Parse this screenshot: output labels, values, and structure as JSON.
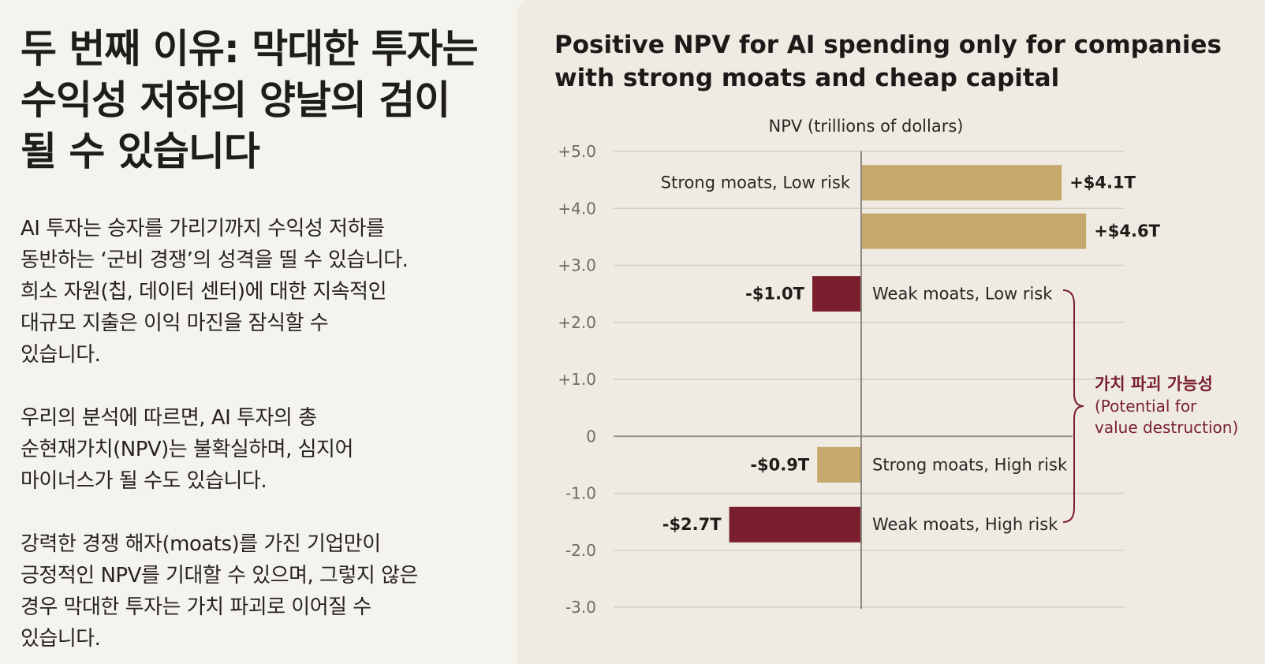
{
  "left": {
    "headline": [
      "두 번째 이유: 막대한 투자는",
      "수익성 저하의 양날의 검이",
      "될 수 있습니다"
    ],
    "paragraphs": [
      [
        "AI 투자는 승자를 가리기까지 수익성 저하를",
        "동반하는 ‘군비 경쟁’의 성격을 띨 수 있습니다.",
        "희소 자원(칩, 데이터 센터)에 대한 지속적인",
        "대규모 지출은 이익 마진을 잠식할 수",
        "있습니다."
      ],
      [
        "우리의 분석에 따르면, AI 투자의 총",
        "순현재가치(NPV)는 불확실하며, 심지어",
        "마이너스가 될 수도 있습니다."
      ],
      [
        "강력한 경쟁 해자(moats)를 가진 기업만이",
        "긍정적인 NPV를 기대할 수 있으며, 그렇지 않은",
        "경우 막대한 투자는 가치 파괴로 이어질 수",
        "있습니다."
      ]
    ]
  },
  "chart_data": {
    "type": "bar",
    "orientation": "horizontal",
    "title": "Positive NPV for AI spending only for companies with strong moats and cheap capital",
    "axis_title": "NPV (trillions of dollars)",
    "ylim": [
      -3.0,
      5.0
    ],
    "ticks": [
      "+5.0",
      "+4.0",
      "+3.0",
      "+2.0",
      "+1.0",
      "0",
      "-1.0",
      "-2.0",
      "-3.0"
    ],
    "tick_values": [
      5,
      4,
      3,
      2,
      1,
      0,
      -1,
      -2,
      -3
    ],
    "gridlines": true,
    "bars": [
      {
        "label": "Strong moats, Low risk",
        "value_label": "+$4.1T",
        "value": 4.1,
        "row": 4.45,
        "color": "#c4a86c"
      },
      {
        "label": "",
        "value_label": "+$4.6T",
        "value": 4.6,
        "row": 3.6,
        "color": "#c4a86c"
      },
      {
        "label": "Weak moats, Low risk",
        "value_label": "-$1.0T",
        "value": -1.0,
        "row": 2.5,
        "color": "#7b1f2e"
      },
      {
        "label": "Strong moats, High risk",
        "value_label": "-$0.9T",
        "value": -0.9,
        "row": -0.5,
        "color": "#c4a86c"
      },
      {
        "label": "Weak moats, High risk",
        "value_label": "-$2.7T",
        "value": -2.7,
        "row": -1.55,
        "color": "#7b1f2e"
      }
    ],
    "annotation": {
      "title": "가치 파괴 가능성",
      "lines": [
        "(Potential for",
        "value destruction)"
      ],
      "color": "#7b1f2e"
    }
  }
}
